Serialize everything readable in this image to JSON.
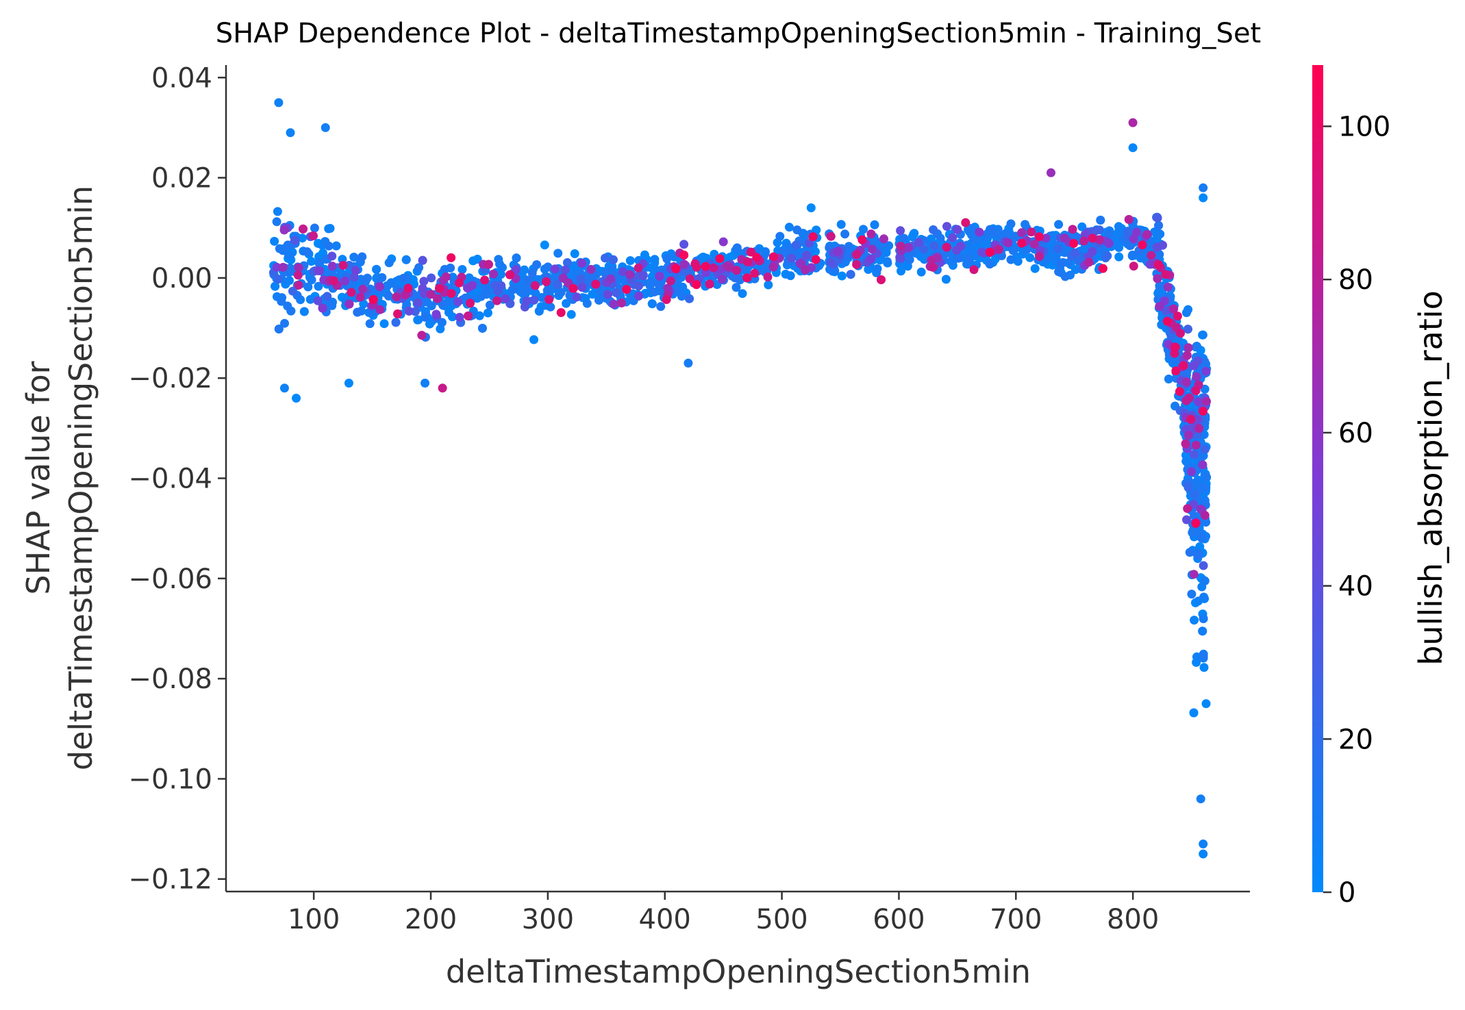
{
  "chart_data": {
    "type": "scatter",
    "title": "SHAP Dependence Plot - deltaTimestampOpeningSection5min - Training_Set",
    "xlabel": "deltaTimestampOpeningSection5min",
    "ylabel_line1": "SHAP value for",
    "ylabel_line2": "deltaTimestampOpeningSection5min",
    "xlim": [
      25,
      900
    ],
    "ylim": [
      -0.1225,
      0.0425
    ],
    "x_ticks": [
      100,
      200,
      300,
      400,
      500,
      600,
      700,
      800
    ],
    "x_tick_labels": [
      "100",
      "200",
      "300",
      "400",
      "500",
      "600",
      "700",
      "800"
    ],
    "y_ticks": [
      0.04,
      0.02,
      0.0,
      -0.02,
      -0.04,
      -0.06,
      -0.08,
      -0.1,
      -0.12
    ],
    "y_tick_labels": [
      "0.04",
      "0.02",
      "0.00",
      "−0.02",
      "−0.04",
      "−0.06",
      "−0.08",
      "−0.10",
      "−0.12"
    ],
    "grid": false,
    "colorbar": {
      "label": "bullish_absorption_ratio",
      "range": [
        0,
        108
      ],
      "ticks": [
        0,
        20,
        40,
        60,
        80,
        100
      ],
      "tick_labels": [
        "0",
        "20",
        "40",
        "60",
        "80",
        "100"
      ],
      "color_low": "#008afb",
      "color_mid": "#7d3cd6",
      "color_high": "#ff0052"
    },
    "notable_points": [
      {
        "x": 70,
        "y": 0.035
      },
      {
        "x": 80,
        "y": 0.029
      },
      {
        "x": 110,
        "y": 0.03
      },
      {
        "x": 85,
        "y": -0.024
      },
      {
        "x": 75,
        "y": -0.022
      },
      {
        "x": 130,
        "y": -0.021
      },
      {
        "x": 210,
        "y": -0.022
      },
      {
        "x": 195,
        "y": -0.021
      },
      {
        "x": 525,
        "y": 0.014
      },
      {
        "x": 730,
        "y": 0.021
      },
      {
        "x": 800,
        "y": 0.031
      },
      {
        "x": 800,
        "y": 0.026
      },
      {
        "x": 420,
        "y": -0.017
      },
      {
        "x": 860,
        "y": 0.018
      },
      {
        "x": 860,
        "y": 0.016
      },
      {
        "x": 858,
        "y": -0.104
      },
      {
        "x": 860,
        "y": -0.115
      },
      {
        "x": 860,
        "y": -0.113
      }
    ],
    "trend": [
      {
        "x": 65,
        "y": 0.002
      },
      {
        "x": 110,
        "y": 0.001
      },
      {
        "x": 150,
        "y": -0.003
      },
      {
        "x": 200,
        "y": -0.004
      },
      {
        "x": 250,
        "y": -0.002
      },
      {
        "x": 300,
        "y": -0.001
      },
      {
        "x": 350,
        "y": -0.001
      },
      {
        "x": 400,
        "y": 0.0
      },
      {
        "x": 450,
        "y": 0.002
      },
      {
        "x": 500,
        "y": 0.004
      },
      {
        "x": 550,
        "y": 0.005
      },
      {
        "x": 600,
        "y": 0.005
      },
      {
        "x": 650,
        "y": 0.006
      },
      {
        "x": 700,
        "y": 0.007
      },
      {
        "x": 750,
        "y": 0.005
      },
      {
        "x": 800,
        "y": 0.008
      },
      {
        "x": 820,
        "y": 0.005
      },
      {
        "x": 835,
        "y": -0.012
      },
      {
        "x": 845,
        "y": -0.025
      },
      {
        "x": 855,
        "y": -0.045
      },
      {
        "x": 862,
        "y": -0.06
      }
    ]
  }
}
